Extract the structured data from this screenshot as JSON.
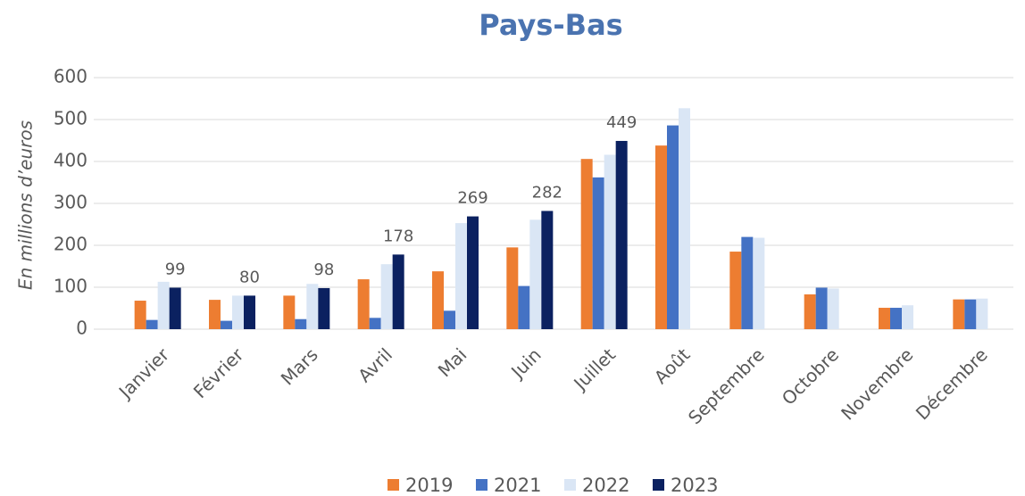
{
  "chart_data": {
    "type": "bar",
    "title": "Pays-Bas",
    "y_label": "En millions d’euros",
    "categories": [
      "Janvier",
      "Février",
      "Mars",
      "Avril",
      "Mai",
      "Juin",
      "Juillet",
      "Août",
      "Septembre",
      "Octobre",
      "Novembre",
      "Décembre"
    ],
    "series": [
      {
        "name": "2019",
        "color": "#ed7d31",
        "values": [
          68,
          70,
          80,
          119,
          138,
          195,
          406,
          438,
          185,
          83,
          51,
          71
        ]
      },
      {
        "name": "2021",
        "color": "#4472c4",
        "values": [
          22,
          20,
          24,
          27,
          44,
          103,
          362,
          486,
          220,
          99,
          51,
          71
        ]
      },
      {
        "name": "2022",
        "color": "#dae6f5",
        "values": [
          113,
          80,
          108,
          155,
          253,
          261,
          416,
          527,
          218,
          97,
          57,
          73
        ]
      },
      {
        "name": "2023",
        "color": "#0b2160",
        "values": [
          99,
          80,
          98,
          178,
          269,
          282,
          449,
          null,
          null,
          null,
          null,
          null
        ],
        "data_labels": true
      }
    ],
    "ylim": [
      0,
      600
    ],
    "yticks": [
      0,
      100,
      200,
      300,
      400,
      500,
      600
    ],
    "grid": true,
    "legend": "bottom"
  }
}
